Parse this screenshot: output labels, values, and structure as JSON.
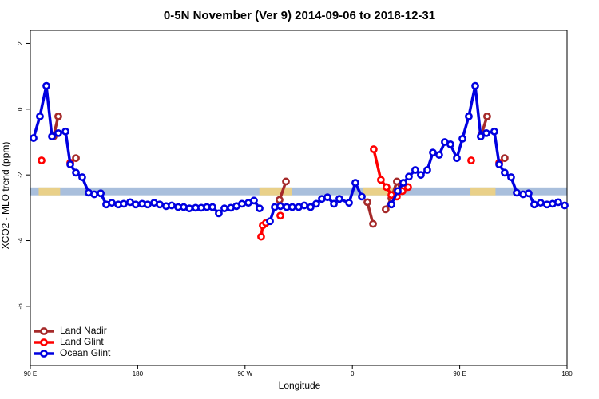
{
  "chart_data": {
    "type": "line",
    "title": "0-5N November (Ver 9)   2014-09-06 to 2018-12-31",
    "xlabel": "Longitude",
    "ylabel": "XCO2 - MLO trend (ppm)",
    "xlim": [
      90,
      540
    ],
    "ylim": [
      -7.8,
      2.4
    ],
    "xticks": [
      {
        "value": 90,
        "label": "90 E"
      },
      180,
      {
        "value": 270,
        "label": "90 W"
      },
      {
        "value": 360,
        "label": "0"
      },
      {
        "value": 450,
        "label": "90 E"
      },
      {
        "value": 540,
        "label": "180"
      }
    ],
    "yticks": [
      2,
      0,
      -2,
      -4,
      -6
    ],
    "legend": "bottom-left",
    "band": {
      "ylim": [
        -2.38,
        -2.62
      ],
      "color": "#a9bfdc",
      "highlight_color": "#f5d27a",
      "highlights": [
        [
          97,
          115
        ],
        [
          282,
          309
        ],
        [
          369,
          395
        ],
        [
          459,
          480
        ]
      ]
    },
    "series": [
      {
        "name": "Land Nadir",
        "color": "#a52a2a",
        "x": [
          109.4,
          113.4,
          null,
          128.2,
          null,
          298.9,
          304.3,
          null,
          372.6,
          377.3,
          null,
          387.9,
          392.7,
          397.3,
          401.4,
          null,
          468.3,
          473.0,
          null,
          487.7
        ],
        "values": [
          -0.83,
          -0.22,
          null,
          -1.49,
          null,
          -2.76,
          -2.2,
          null,
          -2.83,
          -3.49,
          null,
          -3.05,
          -2.71,
          -2.2,
          -2.49,
          null,
          -0.76,
          -0.22,
          null,
          -1.49
        ]
      },
      {
        "name": "Land Glint",
        "color": "#ff0000",
        "x": [
          99.4,
          null,
          123.5,
          null,
          283.5,
          284.8,
          287.5,
          null,
          299.6,
          null,
          377.9,
          383.9,
          388.6,
          392.7,
          397.3,
          402.0,
          406.7,
          null,
          459.6,
          null,
          483.1
        ],
        "values": [
          -1.56,
          null,
          -1.63,
          null,
          -3.88,
          -3.54,
          -3.46,
          null,
          -3.24,
          null,
          -1.22,
          -2.15,
          -2.37,
          -2.61,
          -2.66,
          -2.49,
          -2.37,
          null,
          -1.56,
          null,
          -1.63
        ]
      },
      {
        "name": "Ocean Glint",
        "color": "#0000e0",
        "x": [
          92.7,
          98.0,
          103.4,
          108.1,
          113.4,
          119.5,
          123.5,
          128.2,
          133.5,
          138.9,
          143.6,
          149.0,
          153.6,
          158.3,
          163.7,
          168.3,
          173.7,
          178.4,
          183.7,
          188.4,
          193.8,
          198.5,
          203.8,
          208.5,
          213.9,
          218.6,
          223.3,
          228.6,
          233.3,
          238.0,
          242.7,
          248.0,
          252.7,
          258.1,
          262.8,
          267.4,
          272.8,
          277.5,
          282.2,
          null,
          290.9,
          294.9,
          299.6,
          304.9,
          309.6,
          315.0,
          319.7,
          325.0,
          329.7,
          334.4,
          339.1,
          344.5,
          349.1,
          357.2,
          362.5,
          367.9,
          null,
          392.7,
          398.0,
          402.7,
          407.4,
          412.7,
          417.4,
          422.8,
          427.5,
          432.8,
          437.5,
          442.2,
          447.6,
          452.3,
          457.6,
          463.0,
          467.6,
          472.3,
          479.0,
          483.1,
          487.7,
          493.1,
          497.8,
          503.1,
          507.8,
          512.5,
          517.9,
          523.2,
          527.9,
          532.6,
          538.0
        ],
        "values": [
          -0.88,
          -0.22,
          0.71,
          -0.83,
          -0.73,
          -0.68,
          -1.68,
          -1.93,
          -2.07,
          -2.54,
          -2.59,
          -2.56,
          -2.9,
          -2.85,
          -2.9,
          -2.88,
          -2.83,
          -2.9,
          -2.88,
          -2.9,
          -2.85,
          -2.9,
          -2.95,
          -2.93,
          -2.98,
          -2.98,
          -3.02,
          -3.0,
          -3.0,
          -2.98,
          -2.98,
          -3.17,
          -3.02,
          -3.0,
          -2.95,
          -2.88,
          -2.85,
          -2.78,
          -3.02,
          null,
          -3.41,
          -2.98,
          -2.95,
          -2.98,
          -2.98,
          -2.98,
          -2.93,
          -2.98,
          -2.88,
          -2.73,
          -2.68,
          -2.88,
          -2.73,
          -2.85,
          -2.24,
          -2.66,
          null,
          -2.9,
          -2.49,
          -2.24,
          -2.05,
          -1.85,
          -2.0,
          -1.85,
          -1.32,
          -1.39,
          -1.0,
          -1.07,
          -1.49,
          -0.9,
          -0.22,
          0.71,
          -0.83,
          -0.73,
          -0.68,
          -1.68,
          -1.93,
          -2.07,
          -2.54,
          -2.59,
          -2.56,
          -2.9,
          -2.85,
          -2.9,
          -2.88,
          -2.83,
          -2.93
        ]
      }
    ]
  }
}
